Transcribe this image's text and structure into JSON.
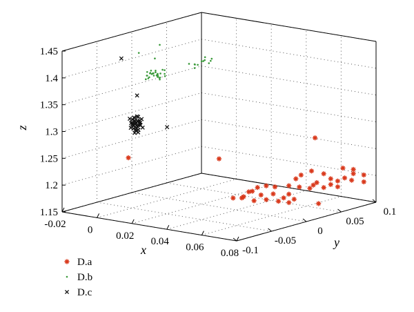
{
  "chart_data": {
    "type": "scatter",
    "title": "",
    "xlabel": "x",
    "ylabel": "y",
    "zlabel": "z",
    "xlim": [
      -0.02,
      0.08
    ],
    "ylim": [
      -0.1,
      0.1
    ],
    "zlim": [
      1.15,
      1.45
    ],
    "xticks": [
      "-0.02",
      "0",
      "0.02",
      "0.04",
      "0.06",
      "0.08"
    ],
    "yticks": [
      "-0.1",
      "-0.05",
      "0",
      "0.05",
      "0.1"
    ],
    "zticks": [
      "1.15",
      "1.2",
      "1.25",
      "1.3",
      "1.35",
      "1.4",
      "1.45"
    ],
    "grid": true,
    "legend_position": "bottom-left",
    "series": [
      {
        "name": "D.a",
        "marker": "asterisk",
        "color": "#d9391c",
        "points": [
          [
            0.065,
            0.05,
            1.28
          ],
          [
            0.01,
            -0.08,
            1.26
          ],
          [
            0.03,
            0.0,
            1.24
          ],
          [
            0.06,
            -0.04,
            1.2
          ],
          [
            0.062,
            -0.03,
            1.19
          ],
          [
            0.065,
            -0.02,
            1.19
          ],
          [
            0.068,
            -0.01,
            1.185
          ],
          [
            0.07,
            0.0,
            1.18
          ],
          [
            0.066,
            0.01,
            1.19
          ],
          [
            0.063,
            -0.035,
            1.21
          ],
          [
            0.061,
            -0.045,
            1.2
          ],
          [
            0.064,
            -0.025,
            1.2
          ],
          [
            0.067,
            -0.015,
            1.2
          ],
          [
            0.069,
            -0.005,
            1.19
          ],
          [
            0.071,
            0.005,
            1.185
          ],
          [
            0.062,
            0.02,
            1.2
          ],
          [
            0.064,
            0.03,
            1.195
          ],
          [
            0.066,
            0.04,
            1.19
          ],
          [
            0.068,
            0.045,
            1.2
          ],
          [
            0.07,
            0.05,
            1.19
          ],
          [
            0.072,
            0.055,
            1.195
          ],
          [
            0.066,
            0.06,
            1.21
          ],
          [
            0.068,
            0.065,
            1.2
          ],
          [
            0.07,
            0.07,
            1.195
          ],
          [
            0.072,
            0.075,
            1.2
          ],
          [
            0.074,
            0.08,
            1.195
          ],
          [
            0.073,
            0.085,
            1.205
          ],
          [
            0.071,
            0.09,
            1.21
          ],
          [
            0.075,
            0.095,
            1.2
          ],
          [
            0.077,
            0.09,
            1.19
          ],
          [
            0.063,
            0.035,
            1.215
          ],
          [
            0.061,
            -0.01,
            1.21
          ],
          [
            0.06,
            -0.02,
            1.21
          ],
          [
            0.075,
            0.03,
            1.17
          ],
          [
            0.074,
            0.06,
            1.19
          ],
          [
            0.069,
            0.08,
            1.215
          ],
          [
            0.065,
            0.045,
            1.22
          ],
          [
            0.058,
            -0.05,
            1.2
          ],
          [
            0.059,
            -0.03,
            1.205
          ],
          [
            0.062,
            0.0,
            1.205
          ],
          [
            0.066,
            0.02,
            1.215
          ],
          [
            0.07,
            0.035,
            1.2
          ]
        ]
      },
      {
        "name": "D.b",
        "marker": "point",
        "color": "#3a9a3a",
        "points": [
          [
            0.0,
            -0.02,
            1.39
          ],
          [
            0.001,
            -0.022,
            1.392
          ],
          [
            0.002,
            -0.018,
            1.388
          ],
          [
            0.0,
            -0.025,
            1.385
          ],
          [
            -0.001,
            -0.02,
            1.395
          ],
          [
            0.003,
            -0.021,
            1.39
          ],
          [
            0.001,
            -0.017,
            1.386
          ],
          [
            0.002,
            -0.024,
            1.393
          ],
          [
            -0.002,
            -0.019,
            1.389
          ],
          [
            0.004,
            -0.023,
            1.387
          ],
          [
            0.0,
            -0.016,
            1.391
          ],
          [
            0.001,
            -0.026,
            1.394
          ],
          [
            0.003,
            -0.018,
            1.383
          ],
          [
            -0.001,
            -0.024,
            1.382
          ],
          [
            0.002,
            -0.021,
            1.397
          ],
          [
            0.001,
            -0.015,
            1.384
          ],
          [
            0.0,
            -0.028,
            1.389
          ],
          [
            0.004,
            -0.019,
            1.392
          ],
          [
            0.005,
            -0.022,
            1.386
          ],
          [
            -0.002,
            -0.023,
            1.393
          ],
          [
            0.003,
            -0.026,
            1.39
          ],
          [
            0.006,
            -0.018,
            1.392
          ],
          [
            0.0,
            -0.013,
            1.387
          ],
          [
            0.002,
            -0.011,
            1.395
          ],
          [
            -0.003,
            -0.021,
            1.385
          ],
          [
            0.007,
            -0.02,
            1.389
          ],
          [
            0.004,
            -0.013,
            1.396
          ],
          [
            0.0,
            -0.03,
            1.383
          ],
          [
            0.003,
            -0.029,
            1.394
          ],
          [
            0.006,
            -0.025,
            1.384
          ],
          [
            0.01,
            0.015,
            1.4
          ],
          [
            0.012,
            0.02,
            1.405
          ],
          [
            0.009,
            0.018,
            1.398
          ],
          [
            0.011,
            0.025,
            1.403
          ],
          [
            0.013,
            0.022,
            1.407
          ],
          [
            0.008,
            0.012,
            1.401
          ],
          [
            0.014,
            0.028,
            1.404
          ],
          [
            0.01,
            0.03,
            1.408
          ],
          [
            0.012,
            0.01,
            1.396
          ],
          [
            0.015,
            0.023,
            1.402
          ],
          [
            0.011,
            0.017,
            1.399
          ],
          [
            0.013,
            0.032,
            1.406
          ],
          [
            0.0,
            -0.01,
            1.44
          ],
          [
            -0.004,
            -0.03,
            1.43
          ],
          [
            0.002,
            -0.022,
            1.42
          ]
        ]
      },
      {
        "name": "D.c",
        "marker": "x",
        "color": "#111111",
        "points": [
          [
            -0.01,
            -0.04,
            1.42
          ],
          [
            -0.005,
            -0.03,
            1.35
          ],
          [
            0.005,
            -0.012,
            1.29
          ],
          [
            -0.004,
            -0.036,
            1.3
          ],
          [
            -0.003,
            -0.034,
            1.305
          ],
          [
            -0.005,
            -0.037,
            1.298
          ],
          [
            -0.002,
            -0.033,
            1.302
          ],
          [
            -0.004,
            -0.035,
            1.294
          ],
          [
            -0.003,
            -0.038,
            1.307
          ],
          [
            -0.006,
            -0.036,
            1.3
          ],
          [
            -0.002,
            -0.037,
            1.296
          ],
          [
            -0.004,
            -0.032,
            1.303
          ],
          [
            -0.003,
            -0.036,
            1.292
          ],
          [
            -0.005,
            -0.034,
            1.31
          ],
          [
            -0.001,
            -0.035,
            1.299
          ],
          [
            -0.004,
            -0.039,
            1.301
          ],
          [
            -0.006,
            -0.033,
            1.295
          ],
          [
            -0.002,
            -0.034,
            1.306
          ],
          [
            -0.003,
            -0.033,
            1.288
          ],
          [
            -0.004,
            -0.037,
            1.312
          ],
          [
            -0.005,
            -0.035,
            1.29
          ],
          [
            -0.003,
            -0.031,
            1.297
          ],
          [
            -0.002,
            -0.039,
            1.304
          ],
          [
            -0.006,
            -0.038,
            1.309
          ],
          [
            -0.004,
            -0.034,
            1.286
          ],
          [
            -0.001,
            -0.032,
            1.293
          ],
          [
            -0.005,
            -0.033,
            1.304
          ],
          [
            -0.003,
            -0.04,
            1.298
          ],
          [
            -0.004,
            -0.031,
            1.311
          ],
          [
            -0.002,
            -0.036,
            1.285
          ],
          [
            -0.005,
            -0.039,
            1.293
          ],
          [
            -0.003,
            -0.035,
            1.314
          ],
          [
            -0.001,
            -0.038,
            1.3
          ],
          [
            -0.006,
            -0.034,
            1.306
          ],
          [
            -0.004,
            -0.036,
            1.283
          ],
          [
            -0.002,
            -0.031,
            1.308
          ],
          [
            -0.003,
            -0.037,
            1.29
          ],
          [
            -0.005,
            -0.032,
            1.298
          ],
          [
            -0.004,
            -0.04,
            1.304
          ]
        ]
      }
    ]
  }
}
